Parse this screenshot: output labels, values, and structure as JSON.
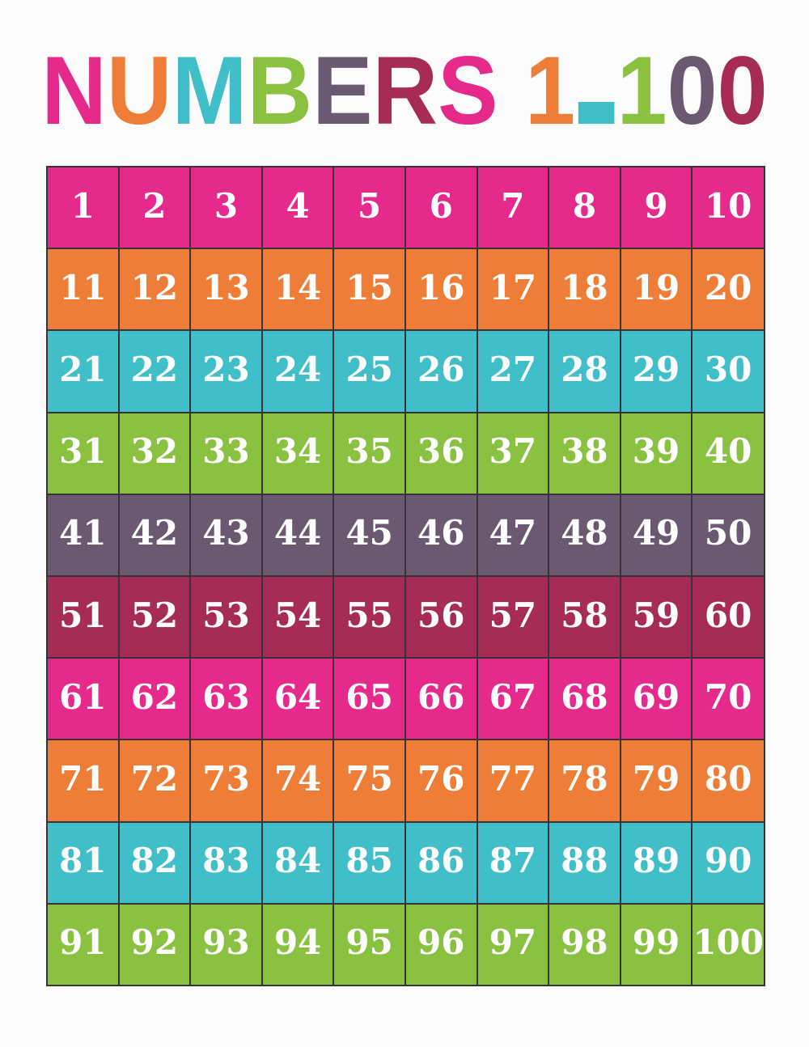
{
  "page": {
    "background": "#fdfcfc"
  },
  "palette": {
    "pink": "#e62a8c",
    "orange": "#ee7e37",
    "teal": "#41bfc9",
    "green": "#8bc140",
    "purple": "#6b5971",
    "maroon": "#a72b57"
  },
  "title": {
    "text": "NUMBERS 1-100",
    "letters": [
      {
        "char": "N",
        "color": "#e62a8c"
      },
      {
        "char": "U",
        "color": "#ee7e37"
      },
      {
        "char": "M",
        "color": "#41bfc9"
      },
      {
        "char": "B",
        "color": "#8bc140"
      },
      {
        "char": "E",
        "color": "#6b5971"
      },
      {
        "char": "R",
        "color": "#a72b57"
      },
      {
        "char": "S",
        "color": "#e62a8c"
      },
      {
        "char": " ",
        "color": ""
      },
      {
        "char": "1",
        "color": "#ee7e37"
      },
      {
        "char": "-",
        "color": "#41bfc9"
      },
      {
        "char": "1",
        "color": "#8bc140"
      },
      {
        "char": "0",
        "color": "#6b5971"
      },
      {
        "char": "0",
        "color": "#a72b57"
      }
    ]
  },
  "grid": {
    "line_color": "#383338",
    "number_color": "#ffffff",
    "rows": [
      {
        "color": "#e62a8c",
        "values": [
          1,
          2,
          3,
          4,
          5,
          6,
          7,
          8,
          9,
          10
        ]
      },
      {
        "color": "#ee7e37",
        "values": [
          11,
          12,
          13,
          14,
          15,
          16,
          17,
          18,
          19,
          20
        ]
      },
      {
        "color": "#41bfc9",
        "values": [
          21,
          22,
          23,
          24,
          25,
          26,
          27,
          28,
          29,
          30
        ]
      },
      {
        "color": "#8bc140",
        "values": [
          31,
          32,
          33,
          34,
          35,
          36,
          37,
          38,
          39,
          40
        ]
      },
      {
        "color": "#6b5971",
        "values": [
          41,
          42,
          43,
          44,
          45,
          46,
          47,
          48,
          49,
          50
        ]
      },
      {
        "color": "#a72b57",
        "values": [
          51,
          52,
          53,
          54,
          55,
          56,
          57,
          58,
          59,
          60
        ]
      },
      {
        "color": "#e62a8c",
        "values": [
          61,
          62,
          63,
          64,
          65,
          66,
          67,
          68,
          69,
          70
        ]
      },
      {
        "color": "#ee7e37",
        "values": [
          71,
          72,
          73,
          74,
          75,
          76,
          77,
          78,
          79,
          80
        ]
      },
      {
        "color": "#41bfc9",
        "values": [
          81,
          82,
          83,
          84,
          85,
          86,
          87,
          88,
          89,
          90
        ]
      },
      {
        "color": "#8bc140",
        "values": [
          91,
          92,
          93,
          94,
          95,
          96,
          97,
          98,
          99,
          100
        ]
      }
    ]
  }
}
